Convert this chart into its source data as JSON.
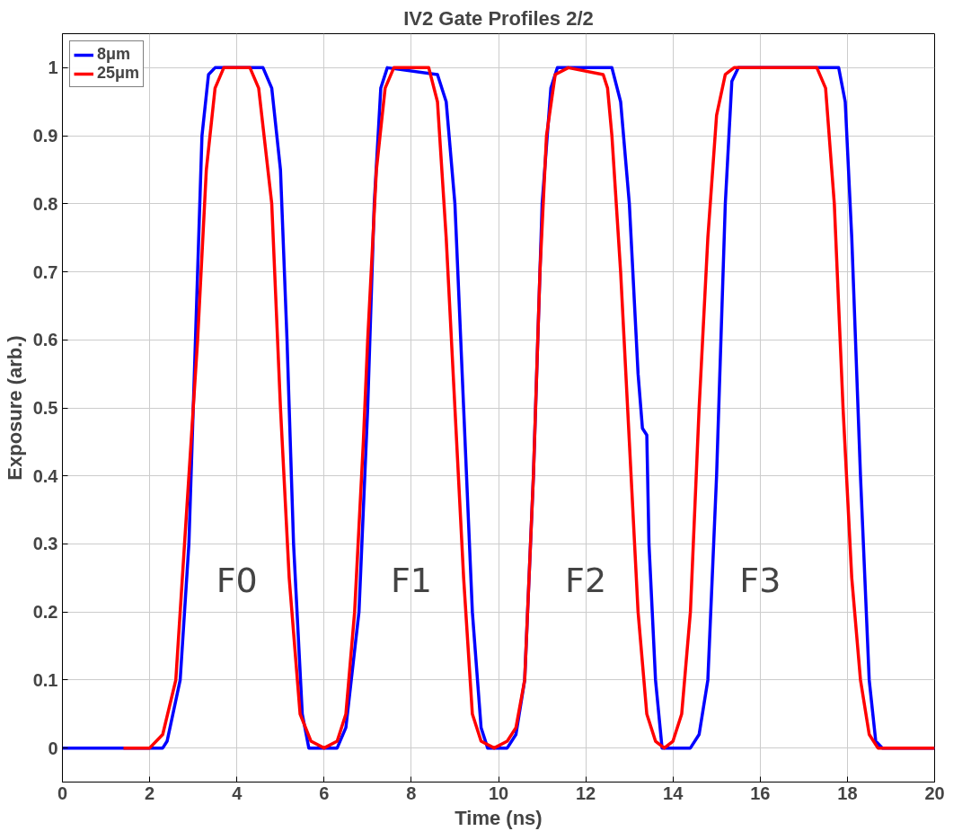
{
  "chart_data": {
    "type": "line",
    "title": "IV2 Gate Profiles 2/2",
    "xlabel": "Time (ns)",
    "ylabel": "Exposure (arb.)",
    "xlim": [
      0,
      20
    ],
    "ylim": [
      -0.05,
      1.05
    ],
    "xticks": [
      0,
      2,
      4,
      6,
      8,
      10,
      12,
      14,
      16,
      18,
      20
    ],
    "yticks": [
      0,
      0.1,
      0.2,
      0.3,
      0.4,
      0.5,
      0.6,
      0.7,
      0.8,
      0.9,
      1
    ],
    "grid": true,
    "legend": "top left",
    "line_style": "solid",
    "marker": "none",
    "annotations": [
      "F0",
      "F1",
      "F2",
      "F3"
    ],
    "series": [
      {
        "name": "8μm",
        "color": "#0000ff",
        "x": [
          0,
          2.3,
          2.4,
          2.7,
          2.9,
          3.05,
          3.2,
          3.35,
          3.5,
          4.6,
          4.8,
          5.0,
          5.15,
          5.3,
          5.5,
          5.65,
          6.3,
          6.5,
          6.8,
          7.0,
          7.15,
          7.3,
          7.45,
          8.6,
          8.8,
          9.0,
          9.2,
          9.4,
          9.6,
          9.75,
          10.2,
          10.4,
          10.6,
          10.8,
          11.0,
          11.2,
          11.35,
          12.6,
          12.8,
          13.0,
          13.2,
          13.3,
          13.4,
          13.45,
          13.6,
          13.75,
          14.4,
          14.6,
          14.8,
          15.0,
          15.2,
          15.35,
          15.5,
          17.8,
          17.95,
          18.1,
          18.3,
          18.5,
          18.65,
          18.8,
          20
        ],
        "values": [
          0,
          0,
          0.01,
          0.1,
          0.3,
          0.6,
          0.9,
          0.99,
          1.0,
          1.0,
          0.97,
          0.85,
          0.6,
          0.3,
          0.05,
          0,
          0,
          0.03,
          0.2,
          0.5,
          0.8,
          0.97,
          1.0,
          0.99,
          0.95,
          0.8,
          0.5,
          0.2,
          0.03,
          0,
          0,
          0.02,
          0.1,
          0.4,
          0.8,
          0.97,
          1.0,
          1.0,
          0.95,
          0.8,
          0.55,
          0.47,
          0.46,
          0.3,
          0.1,
          0,
          0,
          0.02,
          0.1,
          0.4,
          0.8,
          0.98,
          1.0,
          1.0,
          0.95,
          0.75,
          0.4,
          0.1,
          0.01,
          0,
          0
        ]
      },
      {
        "name": "25μm",
        "color": "#ff0000",
        "x": [
          1.4,
          2.0,
          2.3,
          2.6,
          2.8,
          3.0,
          3.1,
          3.3,
          3.5,
          3.7,
          4.3,
          4.5,
          4.8,
          5.0,
          5.2,
          5.45,
          5.7,
          6.0,
          6.3,
          6.5,
          6.7,
          6.9,
          7.0,
          7.2,
          7.4,
          7.6,
          8.4,
          8.6,
          8.8,
          9.0,
          9.2,
          9.4,
          9.6,
          9.9,
          10.2,
          10.4,
          10.6,
          10.8,
          10.95,
          11.1,
          11.3,
          11.6,
          12.4,
          12.5,
          12.6,
          12.8,
          13.0,
          13.2,
          13.4,
          13.6,
          13.8,
          14.0,
          14.2,
          14.4,
          14.6,
          14.8,
          15.0,
          15.2,
          15.4,
          17.3,
          17.5,
          17.7,
          17.9,
          18.1,
          18.3,
          18.5,
          18.7,
          20
        ],
        "values": [
          0,
          0,
          0.02,
          0.1,
          0.3,
          0.5,
          0.6,
          0.85,
          0.97,
          1.0,
          1.0,
          0.97,
          0.8,
          0.5,
          0.25,
          0.05,
          0.01,
          0,
          0.01,
          0.05,
          0.2,
          0.45,
          0.6,
          0.85,
          0.97,
          1.0,
          1.0,
          0.95,
          0.75,
          0.5,
          0.25,
          0.05,
          0.01,
          0,
          0.01,
          0.03,
          0.1,
          0.4,
          0.7,
          0.9,
          0.99,
          1.0,
          0.99,
          0.97,
          0.9,
          0.7,
          0.45,
          0.2,
          0.05,
          0.01,
          0,
          0.01,
          0.05,
          0.2,
          0.5,
          0.75,
          0.93,
          0.99,
          1.0,
          1.0,
          0.97,
          0.8,
          0.5,
          0.25,
          0.1,
          0.02,
          0,
          0
        ]
      }
    ]
  }
}
